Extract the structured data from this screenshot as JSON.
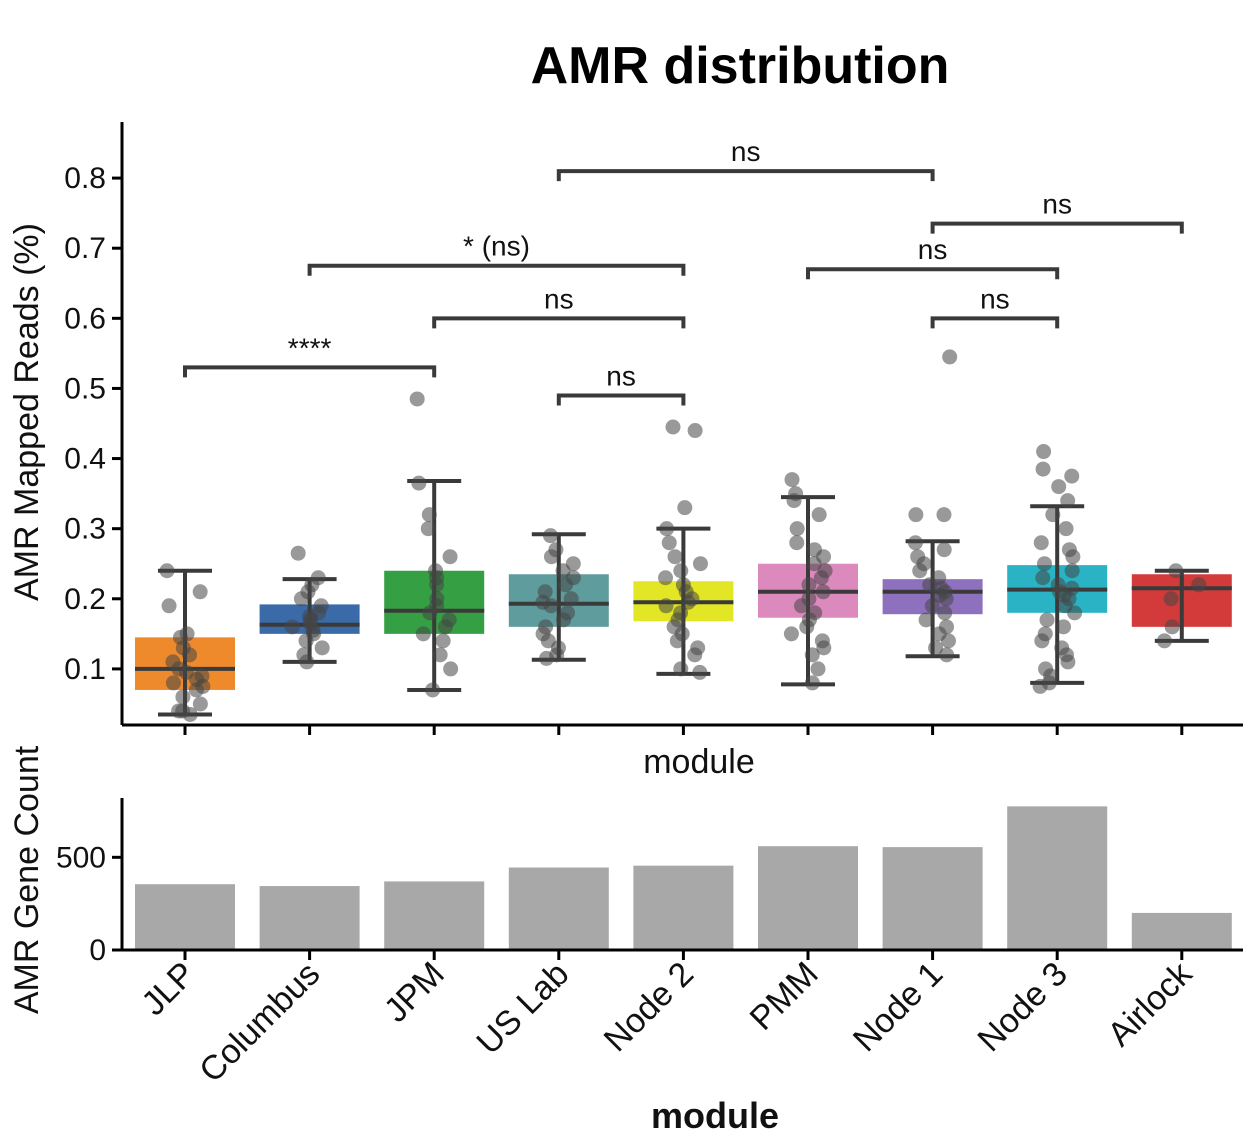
{
  "chart_data": {
    "title": "AMR distribution",
    "modules": [
      "JLP",
      "Columbus",
      "JPM",
      "US Lab",
      "Node 2",
      "PMM",
      "Node 1",
      "Node 3",
      "Airlock"
    ],
    "colors": [
      "#ee8a2c",
      "#3a6aa8",
      "#34a043",
      "#5f9c9d",
      "#e3e624",
      "#dc8abe",
      "#8e71be",
      "#29b3c4",
      "#d33a3a"
    ],
    "top": {
      "type": "box",
      "xlabel": "module",
      "ylabel": "AMR Mapped Reads (%)",
      "ylim": [
        0.02,
        0.88
      ],
      "yticks": [
        0.1,
        0.2,
        0.3,
        0.4,
        0.5,
        0.6,
        0.7,
        0.8
      ],
      "ytick_labels": [
        "0.1",
        "0.2",
        "0.3",
        "0.4",
        "0.5",
        "0.6",
        "0.7",
        "0.8"
      ],
      "boxes": [
        {
          "q1": 0.07,
          "median": 0.1,
          "q3": 0.145,
          "whislo": 0.035,
          "whishi": 0.24
        },
        {
          "q1": 0.15,
          "median": 0.163,
          "q3": 0.192,
          "whislo": 0.11,
          "whishi": 0.228
        },
        {
          "q1": 0.15,
          "median": 0.183,
          "q3": 0.24,
          "whislo": 0.07,
          "whishi": 0.368
        },
        {
          "q1": 0.16,
          "median": 0.193,
          "q3": 0.235,
          "whislo": 0.113,
          "whishi": 0.292
        },
        {
          "q1": 0.168,
          "median": 0.195,
          "q3": 0.225,
          "whislo": 0.093,
          "whishi": 0.3
        },
        {
          "q1": 0.173,
          "median": 0.21,
          "q3": 0.25,
          "whislo": 0.078,
          "whishi": 0.345
        },
        {
          "q1": 0.178,
          "median": 0.21,
          "q3": 0.228,
          "whislo": 0.118,
          "whishi": 0.282
        },
        {
          "q1": 0.18,
          "median": 0.213,
          "q3": 0.248,
          "whislo": 0.08,
          "whishi": 0.332
        },
        {
          "q1": 0.16,
          "median": 0.215,
          "q3": 0.235,
          "whislo": 0.14,
          "whishi": 0.24
        }
      ],
      "points": [
        [
          0.24,
          0.21,
          0.19,
          0.15,
          0.145,
          0.13,
          0.12,
          0.11,
          0.1,
          0.095,
          0.09,
          0.085,
          0.08,
          0.075,
          0.07,
          0.06,
          0.05,
          0.04,
          0.035,
          0.04
        ],
        [
          0.265,
          0.23,
          0.22,
          0.21,
          0.2,
          0.19,
          0.18,
          0.175,
          0.17,
          0.165,
          0.16,
          0.155,
          0.15,
          0.14,
          0.13,
          0.12,
          0.11
        ],
        [
          0.485,
          0.365,
          0.32,
          0.3,
          0.26,
          0.24,
          0.23,
          0.22,
          0.2,
          0.19,
          0.18,
          0.17,
          0.16,
          0.15,
          0.14,
          0.12,
          0.1,
          0.07
        ],
        [
          0.29,
          0.27,
          0.26,
          0.25,
          0.24,
          0.23,
          0.22,
          0.21,
          0.2,
          0.195,
          0.19,
          0.18,
          0.17,
          0.16,
          0.15,
          0.14,
          0.13,
          0.12,
          0.115
        ],
        [
          0.445,
          0.44,
          0.33,
          0.3,
          0.28,
          0.26,
          0.25,
          0.24,
          0.23,
          0.22,
          0.21,
          0.2,
          0.195,
          0.19,
          0.18,
          0.17,
          0.16,
          0.15,
          0.14,
          0.13,
          0.12,
          0.1,
          0.095
        ],
        [
          0.37,
          0.35,
          0.34,
          0.32,
          0.3,
          0.28,
          0.27,
          0.26,
          0.25,
          0.24,
          0.23,
          0.22,
          0.21,
          0.2,
          0.19,
          0.18,
          0.17,
          0.16,
          0.15,
          0.14,
          0.13,
          0.12,
          0.1,
          0.08
        ],
        [
          0.545,
          0.32,
          0.32,
          0.28,
          0.27,
          0.26,
          0.25,
          0.24,
          0.23,
          0.22,
          0.215,
          0.21,
          0.205,
          0.2,
          0.19,
          0.18,
          0.17,
          0.16,
          0.15,
          0.14,
          0.13,
          0.12
        ],
        [
          0.41,
          0.385,
          0.375,
          0.36,
          0.34,
          0.32,
          0.3,
          0.28,
          0.27,
          0.26,
          0.25,
          0.24,
          0.23,
          0.22,
          0.215,
          0.21,
          0.205,
          0.2,
          0.19,
          0.18,
          0.17,
          0.16,
          0.15,
          0.14,
          0.13,
          0.12,
          0.11,
          0.1,
          0.09,
          0.08,
          0.075
        ],
        [
          0.24,
          0.22,
          0.2,
          0.16,
          0.14
        ]
      ],
      "annotations": [
        {
          "from": 0,
          "to": 2,
          "y": 0.53,
          "label": "****"
        },
        {
          "from": 3,
          "to": 4,
          "y": 0.49,
          "label": "ns"
        },
        {
          "from": 2,
          "to": 4,
          "y": 0.6,
          "label": "ns"
        },
        {
          "from": 1,
          "to": 4,
          "y": 0.675,
          "label": "* (ns)"
        },
        {
          "from": 3,
          "to": 6,
          "y": 0.81,
          "label": "ns"
        },
        {
          "from": 6,
          "to": 7,
          "y": 0.6,
          "label": "ns"
        },
        {
          "from": 5,
          "to": 7,
          "y": 0.67,
          "label": "ns"
        },
        {
          "from": 6,
          "to": 8,
          "y": 0.735,
          "label": "ns"
        }
      ]
    },
    "bottom": {
      "type": "bar",
      "xlabel": "module",
      "ylabel": "AMR Gene Count",
      "ylim": [
        0,
        820
      ],
      "yticks": [
        0,
        500
      ],
      "ytick_labels": [
        "0",
        "500"
      ],
      "bar_color": "#a8a8a8",
      "values": [
        355,
        345,
        370,
        445,
        455,
        560,
        555,
        775,
        200
      ]
    }
  }
}
